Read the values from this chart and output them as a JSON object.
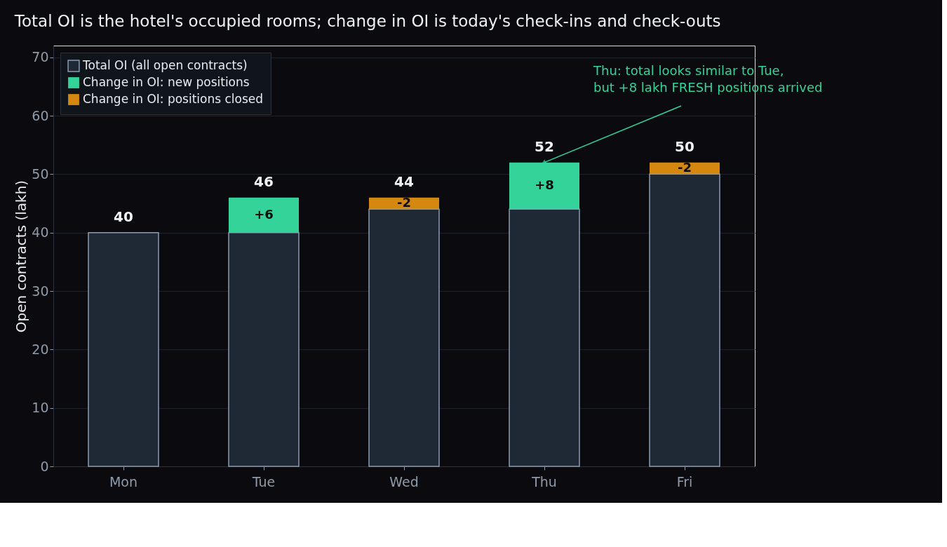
{
  "chart_data": {
    "type": "bar",
    "stacked": true,
    "title": "Total OI is the hotel's occupied rooms; change in OI is today's check-ins and check-outs",
    "ylabel": "Open contracts (lakh)",
    "categories": [
      "Mon",
      "Tue",
      "Wed",
      "Thu",
      "Fri"
    ],
    "series": [
      {
        "name": "Total OI (all open contracts)",
        "color": "#1e2935",
        "values": [
          40,
          40,
          44,
          44,
          50
        ]
      },
      {
        "name": "Change in OI: new positions",
        "color": "#34d399",
        "values": [
          null,
          6,
          null,
          8,
          null
        ],
        "value_labels": [
          null,
          "+6",
          null,
          "+8",
          null
        ]
      },
      {
        "name": "Change in OI: positions closed",
        "color": "#d4880f",
        "values": [
          null,
          null,
          -2,
          null,
          -2
        ],
        "base": [
          null,
          null,
          46,
          null,
          52
        ],
        "value_labels": [
          null,
          null,
          "-2",
          null,
          "-2"
        ]
      }
    ],
    "totals": [
      "40",
      "46",
      "44",
      "52",
      "50"
    ],
    "annotations": [
      {
        "text": "Thu: total looks similar to Tue,\nbut +8 lakh FRESH positions arrived",
        "x": "Thu",
        "y": 52
      }
    ],
    "ylim": [
      0,
      72
    ],
    "yticks": [
      0,
      10,
      20,
      30,
      40,
      50,
      60,
      70
    ],
    "grid": "y",
    "legend": "top left"
  }
}
